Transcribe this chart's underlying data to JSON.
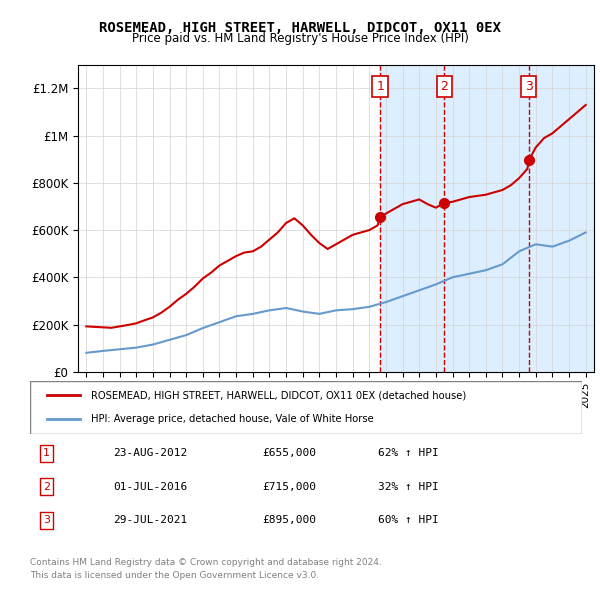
{
  "title": "ROSEMEAD, HIGH STREET, HARWELL, DIDCOT, OX11 0EX",
  "subtitle": "Price paid vs. HM Land Registry's House Price Index (HPI)",
  "legend_line1": "ROSEMEAD, HIGH STREET, HARWELL, DIDCOT, OX11 0EX (detached house)",
  "legend_line2": "HPI: Average price, detached house, Vale of White Horse",
  "footer1": "Contains HM Land Registry data © Crown copyright and database right 2024.",
  "footer2": "This data is licensed under the Open Government Licence v3.0.",
  "transactions": [
    {
      "num": 1,
      "date": "23-AUG-2012",
      "price": 655000,
      "pct": "62%",
      "dir": "↑"
    },
    {
      "num": 2,
      "date": "01-JUL-2016",
      "price": 715000,
      "pct": "32%",
      "dir": "↑"
    },
    {
      "num": 3,
      "date": "29-JUL-2021",
      "price": 895000,
      "pct": "60%",
      "dir": "↑"
    }
  ],
  "transaction_years": [
    2012.65,
    2016.5,
    2021.58
  ],
  "red_color": "#cc0000",
  "blue_color": "#6699cc",
  "shade_color": "#ddeeff",
  "ylim": [
    0,
    1300000
  ],
  "xlim_start": 1994.5,
  "xlim_end": 2025.5,
  "hpi_x": [
    1995,
    1996,
    1997,
    1998,
    1999,
    2000,
    2001,
    2002,
    2003,
    2004,
    2005,
    2006,
    2007,
    2008,
    2009,
    2010,
    2011,
    2012,
    2013,
    2014,
    2015,
    2016,
    2017,
    2018,
    2019,
    2020,
    2021,
    2022,
    2023,
    2024,
    2025
  ],
  "hpi_y": [
    80000,
    88000,
    95000,
    102000,
    115000,
    135000,
    155000,
    185000,
    210000,
    235000,
    245000,
    260000,
    270000,
    255000,
    245000,
    260000,
    265000,
    275000,
    295000,
    320000,
    345000,
    370000,
    400000,
    415000,
    430000,
    455000,
    510000,
    540000,
    530000,
    555000,
    590000
  ],
  "price_x": [
    1995,
    1995.5,
    1996,
    1996.5,
    1997,
    1997.5,
    1998,
    1998.5,
    1999,
    1999.5,
    2000,
    2000.5,
    2001,
    2001.5,
    2002,
    2002.5,
    2003,
    2003.5,
    2004,
    2004.5,
    2005,
    2005.5,
    2006,
    2006.5,
    2007,
    2007.5,
    2008,
    2008.5,
    2009,
    2009.5,
    2010,
    2010.5,
    2011,
    2011.5,
    2012,
    2012.5,
    2012.65,
    2013,
    2013.5,
    2014,
    2014.5,
    2015,
    2015.5,
    2016,
    2016.5,
    2016.5,
    2017,
    2017.5,
    2018,
    2018.5,
    2019,
    2019.5,
    2020,
    2020.5,
    2021,
    2021.5,
    2021.58,
    2022,
    2022.5,
    2023,
    2023.5,
    2024,
    2024.5,
    2025
  ],
  "price_y": [
    192000,
    190000,
    188000,
    186000,
    192000,
    198000,
    205000,
    218000,
    230000,
    250000,
    275000,
    305000,
    330000,
    360000,
    395000,
    420000,
    450000,
    470000,
    490000,
    505000,
    510000,
    530000,
    560000,
    590000,
    630000,
    650000,
    620000,
    580000,
    545000,
    520000,
    540000,
    560000,
    580000,
    590000,
    600000,
    620000,
    655000,
    670000,
    690000,
    710000,
    720000,
    730000,
    710000,
    695000,
    715000,
    715000,
    720000,
    730000,
    740000,
    745000,
    750000,
    760000,
    770000,
    790000,
    820000,
    860000,
    895000,
    950000,
    990000,
    1010000,
    1040000,
    1070000,
    1100000,
    1130000
  ],
  "xticks": [
    1995,
    1996,
    1997,
    1998,
    1999,
    2000,
    2001,
    2002,
    2003,
    2004,
    2005,
    2006,
    2007,
    2008,
    2009,
    2010,
    2011,
    2012,
    2013,
    2014,
    2015,
    2016,
    2017,
    2018,
    2019,
    2020,
    2021,
    2022,
    2023,
    2024,
    2025
  ],
  "yticks": [
    0,
    200000,
    400000,
    600000,
    800000,
    1000000,
    1200000
  ],
  "ytick_labels": [
    "£0",
    "£200K",
    "£400K",
    "£600K",
    "£800K",
    "£1M",
    "£1.2M"
  ]
}
